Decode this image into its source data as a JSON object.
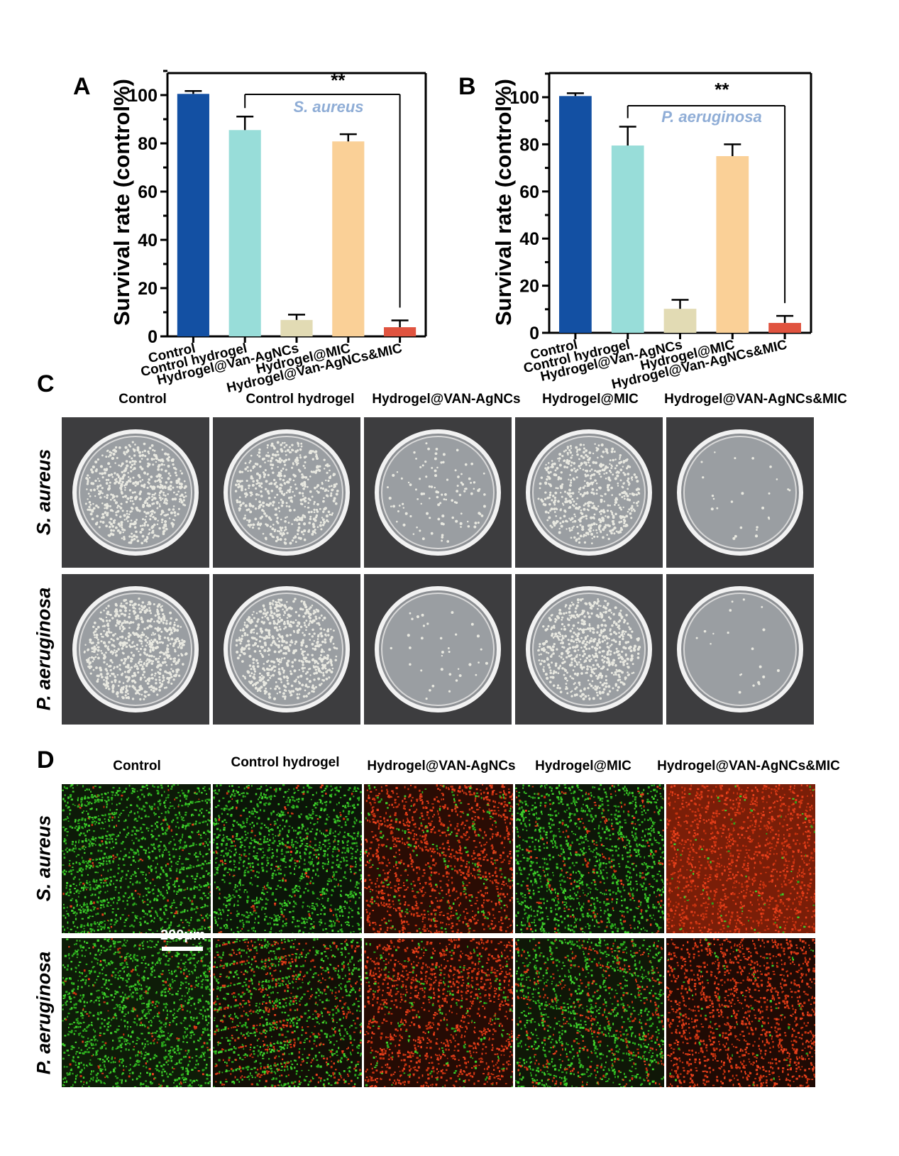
{
  "panels": {
    "a": "A",
    "b": "B",
    "c": "C",
    "d": "D"
  },
  "chart_data": [
    {
      "type": "bar",
      "panel": "A",
      "categories": [
        "Control",
        "Control hydrogel",
        "Hydrogel@Van-AgNCs",
        "Hydrogel@MIC",
        "Hydrogel@Van-AgNCs&MIC"
      ],
      "values": [
        100.5,
        85.5,
        6.8,
        80.8,
        3.8
      ],
      "errors": [
        1.2,
        5.6,
        2.2,
        3.0,
        2.8
      ],
      "colors": [
        "#1350a3",
        "#98ddd9",
        "#e2dbb4",
        "#fad097",
        "#e0533f"
      ],
      "ylabel": "Survival rate (control%)",
      "ylim": [
        0,
        110
      ],
      "yticks": [
        0,
        20,
        40,
        60,
        80,
        100
      ],
      "annotation": "S. aureus",
      "significance": "**",
      "grid": false
    },
    {
      "type": "bar",
      "panel": "B",
      "categories": [
        "Control",
        "Control hydrogel",
        "Hydrogel@Van-AgNCs",
        "Hydrogel@MIC",
        "Hydrogel@Van-AgNCs&MIC"
      ],
      "values": [
        100.5,
        79.5,
        10.2,
        75.0,
        4.2
      ],
      "errors": [
        1.2,
        8.0,
        3.8,
        5.0,
        3.0
      ],
      "colors": [
        "#1350a3",
        "#98ddd9",
        "#e2dbb4",
        "#fad097",
        "#e0533f"
      ],
      "ylabel": "Survival rate (control%)",
      "ylim": [
        0,
        110
      ],
      "yticks": [
        0,
        20,
        40,
        60,
        80,
        100
      ],
      "annotation": "P. aeruginosa",
      "significance": "**",
      "grid": false
    }
  ],
  "panel_c": {
    "columns": [
      "Control",
      "Control hydrogel",
      "Hydrogel@VAN-AgNCs",
      "Hydrogel@MIC",
      "Hydrogel@VAN-AgNCs&MIC"
    ],
    "rows": [
      "S. aureus",
      "P. aeruginosa"
    ]
  },
  "panel_d": {
    "columns": [
      "Control",
      "Control hydrogel",
      "Hydrogel@VAN-AgNCs",
      "Hydrogel@MIC",
      "Hydrogel@VAN-AgNCs&MIC"
    ],
    "rows": [
      "S. aureus",
      "P. aeruginosa"
    ],
    "scalebar": "200μm"
  },
  "colors": {
    "accent_label": "#8fadd6",
    "live_stain": "#3ecb2a",
    "dead_stain": "#e0401e"
  }
}
